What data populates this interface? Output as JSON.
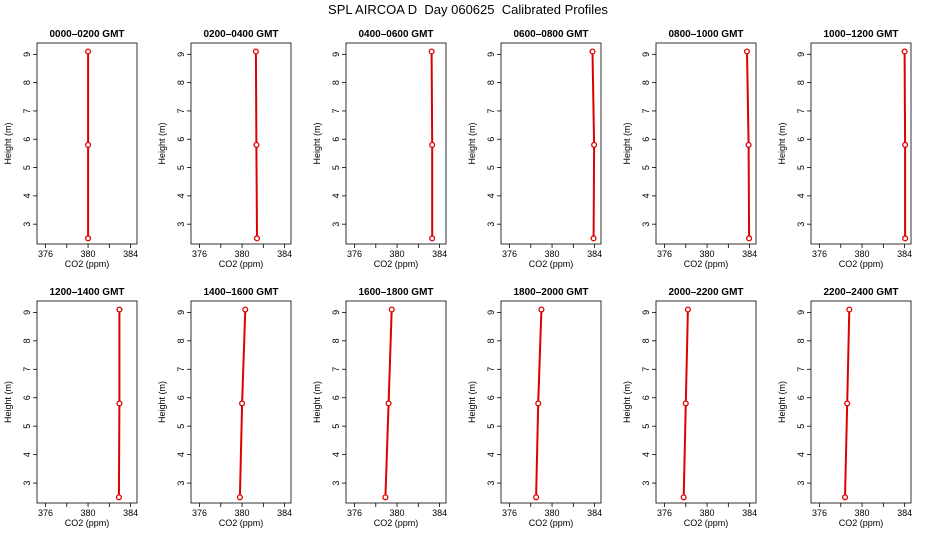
{
  "title": "SPL AIRCOA D  Day 060625  Calibrated Profiles",
  "colors": {
    "series": "#dd0000",
    "axis": "#000000"
  },
  "chart_data": [
    {
      "type": "line",
      "title": "0000–0200 GMT",
      "xlabel": "CO2 (ppm)",
      "ylabel": "Height (m)",
      "xlim": [
        375.2,
        384.6
      ],
      "ylim": [
        2.3,
        9.4
      ],
      "xticks": [
        376,
        378,
        380,
        382,
        384
      ],
      "xtick_labels": [
        "376",
        "",
        "380",
        "",
        "384"
      ],
      "yticks": [
        3,
        4,
        5,
        6,
        7,
        8,
        9
      ],
      "grid": false,
      "points": [
        {
          "x": 380.0,
          "y": 2.5
        },
        {
          "x": 380.0,
          "y": 5.8
        },
        {
          "x": 380.0,
          "y": 9.1
        }
      ]
    },
    {
      "type": "line",
      "title": "0200–0400 GMT",
      "xlabel": "CO2 (ppm)",
      "ylabel": "Height (m)",
      "xlim": [
        375.2,
        384.6
      ],
      "ylim": [
        2.3,
        9.4
      ],
      "xticks": [
        376,
        378,
        380,
        382,
        384
      ],
      "xtick_labels": [
        "376",
        "",
        "380",
        "",
        "384"
      ],
      "yticks": [
        3,
        4,
        5,
        6,
        7,
        8,
        9
      ],
      "grid": false,
      "points": [
        {
          "x": 381.4,
          "y": 2.5
        },
        {
          "x": 381.35,
          "y": 5.8
        },
        {
          "x": 381.3,
          "y": 9.1
        }
      ]
    },
    {
      "type": "line",
      "title": "0400–0600 GMT",
      "xlabel": "CO2 (ppm)",
      "ylabel": "Height (m)",
      "xlim": [
        375.2,
        384.6
      ],
      "ylim": [
        2.3,
        9.4
      ],
      "xticks": [
        376,
        378,
        380,
        382,
        384
      ],
      "xtick_labels": [
        "376",
        "",
        "380",
        "",
        "384"
      ],
      "yticks": [
        3,
        4,
        5,
        6,
        7,
        8,
        9
      ],
      "grid": false,
      "points": [
        {
          "x": 383.3,
          "y": 2.5
        },
        {
          "x": 383.3,
          "y": 5.8
        },
        {
          "x": 383.25,
          "y": 9.1
        }
      ]
    },
    {
      "type": "line",
      "title": "0600–0800 GMT",
      "xlabel": "CO2 (ppm)",
      "ylabel": "Height (m)",
      "xlim": [
        375.2,
        384.6
      ],
      "ylim": [
        2.3,
        9.4
      ],
      "xticks": [
        376,
        378,
        380,
        382,
        384
      ],
      "xtick_labels": [
        "376",
        "",
        "380",
        "",
        "384"
      ],
      "yticks": [
        3,
        4,
        5,
        6,
        7,
        8,
        9
      ],
      "grid": false,
      "points": [
        {
          "x": 383.9,
          "y": 2.5
        },
        {
          "x": 383.95,
          "y": 5.8
        },
        {
          "x": 383.8,
          "y": 9.1
        }
      ]
    },
    {
      "type": "line",
      "title": "0800–1000 GMT",
      "xlabel": "CO2 (ppm)",
      "ylabel": "Height (m)",
      "xlim": [
        375.2,
        384.6
      ],
      "ylim": [
        2.3,
        9.4
      ],
      "xticks": [
        376,
        378,
        380,
        382,
        384
      ],
      "xtick_labels": [
        "376",
        "",
        "380",
        "",
        "384"
      ],
      "yticks": [
        3,
        4,
        5,
        6,
        7,
        8,
        9
      ],
      "grid": false,
      "points": [
        {
          "x": 383.95,
          "y": 2.5
        },
        {
          "x": 383.9,
          "y": 5.8
        },
        {
          "x": 383.75,
          "y": 9.1
        }
      ]
    },
    {
      "type": "line",
      "title": "1000–1200 GMT",
      "xlabel": "CO2 (ppm)",
      "ylabel": "Height (m)",
      "xlim": [
        375.2,
        384.6
      ],
      "ylim": [
        2.3,
        9.4
      ],
      "xticks": [
        376,
        378,
        380,
        382,
        384
      ],
      "xtick_labels": [
        "376",
        "",
        "380",
        "",
        "384"
      ],
      "yticks": [
        3,
        4,
        5,
        6,
        7,
        8,
        9
      ],
      "grid": false,
      "points": [
        {
          "x": 384.05,
          "y": 2.5
        },
        {
          "x": 384.05,
          "y": 5.8
        },
        {
          "x": 384.0,
          "y": 9.1
        }
      ]
    },
    {
      "type": "line",
      "title": "1200–1400 GMT",
      "xlabel": "CO2 (ppm)",
      "ylabel": "Height (m)",
      "xlim": [
        375.2,
        384.6
      ],
      "ylim": [
        2.3,
        9.4
      ],
      "xticks": [
        376,
        378,
        380,
        382,
        384
      ],
      "xtick_labels": [
        "376",
        "",
        "380",
        "",
        "384"
      ],
      "yticks": [
        3,
        4,
        5,
        6,
        7,
        8,
        9
      ],
      "grid": false,
      "points": [
        {
          "x": 382.9,
          "y": 2.5
        },
        {
          "x": 382.95,
          "y": 5.8
        },
        {
          "x": 382.95,
          "y": 9.1
        }
      ]
    },
    {
      "type": "line",
      "title": "1400–1600 GMT",
      "xlabel": "CO2 (ppm)",
      "ylabel": "Height (m)",
      "xlim": [
        375.2,
        384.6
      ],
      "ylim": [
        2.3,
        9.4
      ],
      "xticks": [
        376,
        378,
        380,
        382,
        384
      ],
      "xtick_labels": [
        "376",
        "",
        "380",
        "",
        "384"
      ],
      "yticks": [
        3,
        4,
        5,
        6,
        7,
        8,
        9
      ],
      "grid": false,
      "points": [
        {
          "x": 379.8,
          "y": 2.5
        },
        {
          "x": 380.0,
          "y": 5.8
        },
        {
          "x": 380.3,
          "y": 9.1
        }
      ]
    },
    {
      "type": "line",
      "title": "1600–1800 GMT",
      "xlabel": "CO2 (ppm)",
      "ylabel": "Height (m)",
      "xlim": [
        375.2,
        384.6
      ],
      "ylim": [
        2.3,
        9.4
      ],
      "xticks": [
        376,
        378,
        380,
        382,
        384
      ],
      "xtick_labels": [
        "376",
        "",
        "380",
        "",
        "384"
      ],
      "yticks": [
        3,
        4,
        5,
        6,
        7,
        8,
        9
      ],
      "grid": false,
      "points": [
        {
          "x": 378.9,
          "y": 2.5
        },
        {
          "x": 379.2,
          "y": 5.8
        },
        {
          "x": 379.5,
          "y": 9.1
        }
      ]
    },
    {
      "type": "line",
      "title": "1800–2000 GMT",
      "xlabel": "CO2 (ppm)",
      "ylabel": "Height (m)",
      "xlim": [
        375.2,
        384.6
      ],
      "ylim": [
        2.3,
        9.4
      ],
      "xticks": [
        376,
        378,
        380,
        382,
        384
      ],
      "xtick_labels": [
        "376",
        "",
        "380",
        "",
        "384"
      ],
      "yticks": [
        3,
        4,
        5,
        6,
        7,
        8,
        9
      ],
      "grid": false,
      "points": [
        {
          "x": 378.5,
          "y": 2.5
        },
        {
          "x": 378.7,
          "y": 5.8
        },
        {
          "x": 379.0,
          "y": 9.1
        }
      ]
    },
    {
      "type": "line",
      "title": "2000–2200 GMT",
      "xlabel": "CO2 (ppm)",
      "ylabel": "Height (m)",
      "xlim": [
        375.2,
        384.6
      ],
      "ylim": [
        2.3,
        9.4
      ],
      "xticks": [
        376,
        378,
        380,
        382,
        384
      ],
      "xtick_labels": [
        "376",
        "",
        "380",
        "",
        "384"
      ],
      "yticks": [
        3,
        4,
        5,
        6,
        7,
        8,
        9
      ],
      "grid": false,
      "points": [
        {
          "x": 377.8,
          "y": 2.5
        },
        {
          "x": 378.0,
          "y": 5.8
        },
        {
          "x": 378.2,
          "y": 9.1
        }
      ]
    },
    {
      "type": "line",
      "title": "2200–2400 GMT",
      "xlabel": "CO2 (ppm)",
      "ylabel": "Height (m)",
      "xlim": [
        375.2,
        384.6
      ],
      "ylim": [
        2.3,
        9.4
      ],
      "xticks": [
        376,
        378,
        380,
        382,
        384
      ],
      "xtick_labels": [
        "376",
        "",
        "380",
        "",
        "384"
      ],
      "yticks": [
        3,
        4,
        5,
        6,
        7,
        8,
        9
      ],
      "grid": false,
      "points": [
        {
          "x": 378.4,
          "y": 2.5
        },
        {
          "x": 378.6,
          "y": 5.8
        },
        {
          "x": 378.8,
          "y": 9.1
        }
      ]
    }
  ]
}
